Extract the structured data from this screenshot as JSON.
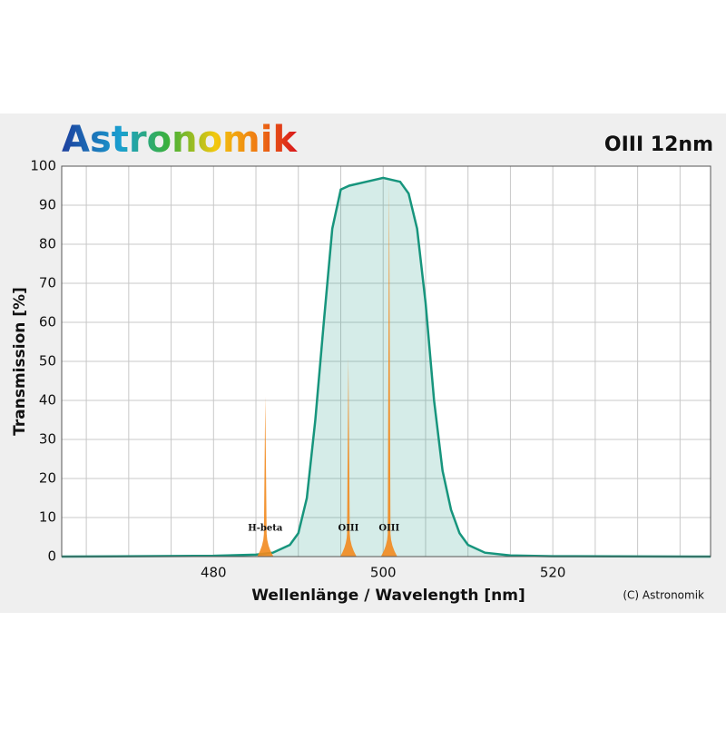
{
  "chart_data": {
    "type": "line",
    "brand": "Astronomik",
    "title": "OIII 12nm",
    "xlabel": "Wellenlänge / Wavelength [nm]",
    "ylabel": "Transmission [%]",
    "copyright": "(C) Astronomik",
    "xlim": [
      462.1,
      538.6
    ],
    "ylim": [
      0,
      100
    ],
    "xticks": [
      480,
      500,
      520
    ],
    "yticks": [
      0,
      10,
      20,
      30,
      40,
      50,
      60,
      70,
      80,
      90,
      100
    ],
    "xgrid": [
      465,
      470,
      475,
      480,
      485,
      490,
      495,
      500,
      505,
      510,
      515,
      520,
      525,
      530,
      535
    ],
    "grid": true,
    "x": [
      462.1,
      480,
      485,
      487,
      489,
      490,
      491,
      492,
      493,
      494,
      495,
      496,
      498,
      500,
      502,
      503,
      504,
      505,
      506,
      507,
      508,
      509,
      510,
      512,
      515,
      520,
      538.6
    ],
    "series": [
      {
        "color": "#17957d",
        "values": [
          0,
          0.2,
          0.5,
          1,
          3,
          6,
          15,
          35,
          60,
          84,
          94,
          95,
          96,
          97,
          96,
          93,
          84,
          65,
          40,
          22,
          12,
          6,
          3,
          1,
          0.3,
          0.1,
          0
        ]
      }
    ],
    "emission_lines": {
      "color": "#f28a1e",
      "labels": [
        "H-beta",
        "OIII",
        "OIII"
      ],
      "x": [
        486.1,
        495.9,
        500.7
      ],
      "values": [
        41,
        51,
        96
      ]
    }
  }
}
